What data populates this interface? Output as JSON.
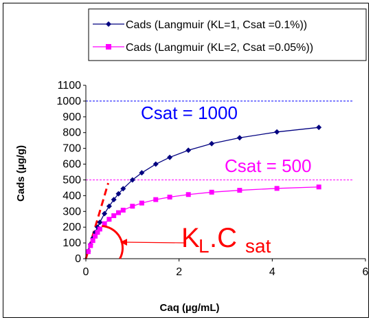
{
  "chart_data": {
    "type": "line",
    "title": "",
    "xlabel": "Caq (µg/mL)",
    "ylabel": "Cads (µg/g)",
    "xlim": [
      0,
      6
    ],
    "ylim": [
      0,
      1100
    ],
    "xticks": [
      0,
      2,
      4,
      6
    ],
    "yticks": [
      0,
      100,
      200,
      300,
      400,
      500,
      600,
      700,
      800,
      900,
      1000,
      1100
    ],
    "grid": false,
    "legend_position": "top",
    "series": [
      {
        "name": "Cads (Langmuir (KL=1, Csat =0.1%))",
        "color": "#000080",
        "marker": "diamond",
        "x": [
          0.05,
          0.1,
          0.15,
          0.2,
          0.25,
          0.3,
          0.4,
          0.5,
          0.6,
          0.7,
          0.8,
          1.0,
          1.2,
          1.5,
          1.8,
          2.2,
          2.7,
          3.3,
          4.1,
          5.0
        ],
        "y": [
          48,
          91,
          130,
          167,
          200,
          231,
          286,
          333,
          375,
          412,
          444,
          500,
          545,
          600,
          643,
          688,
          730,
          767,
          804,
          833
        ]
      },
      {
        "name": "Cads (Langmuir (KL=2, Csat =0.05%))",
        "color": "#ff00ff",
        "marker": "square",
        "x": [
          0.05,
          0.1,
          0.15,
          0.2,
          0.25,
          0.3,
          0.4,
          0.5,
          0.6,
          0.7,
          0.8,
          1.0,
          1.2,
          1.5,
          1.8,
          2.2,
          2.7,
          3.3,
          4.1,
          5.0
        ],
        "y": [
          45,
          83,
          115,
          143,
          167,
          188,
          222,
          250,
          273,
          292,
          308,
          333,
          353,
          375,
          391,
          407,
          422,
          434,
          446,
          455
        ]
      }
    ],
    "reference_lines": [
      {
        "y": 1000,
        "color": "#0000ff",
        "style": "dashed",
        "label": "Csat = 1000"
      },
      {
        "y": 500,
        "color": "#ff00ff",
        "style": "dashed",
        "label": "Csat = 500"
      }
    ],
    "annotations": {
      "tangent_color": "#ff0000",
      "tangent_slope": 1000,
      "tangent_x_range": [
        0,
        0.48
      ],
      "slope_label_main": "K",
      "slope_label_sub1": "L",
      "slope_label_dot": ".C",
      "slope_label_sub2": "sat"
    }
  }
}
